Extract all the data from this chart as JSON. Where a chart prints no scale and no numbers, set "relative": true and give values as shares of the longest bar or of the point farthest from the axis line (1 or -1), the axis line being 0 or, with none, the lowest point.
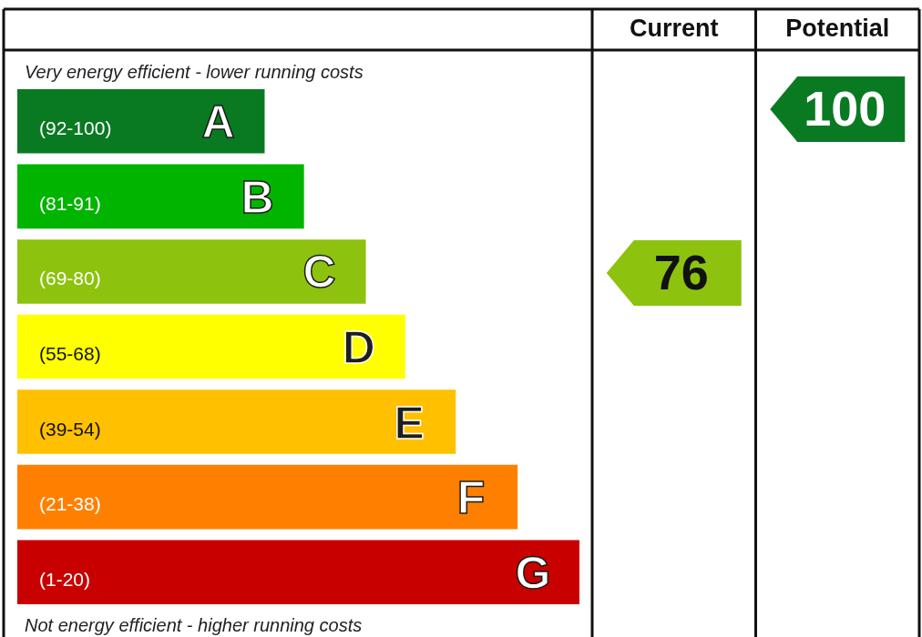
{
  "chart_data": {
    "type": "bar",
    "orientation": "horizontal",
    "relative": true,
    "categories": [
      "A",
      "B",
      "C",
      "D",
      "E",
      "F",
      "G"
    ],
    "values": [
      0.44,
      0.51,
      0.62,
      0.69,
      0.78,
      0.89,
      1
    ],
    "colors": [
      "#0a7a22",
      "#00b400",
      "#8dc30f",
      "#ffff00",
      "#ffc000",
      "#ff8000",
      "#c80000"
    ],
    "annotations": [
      "Very energy efficient - lower running costs",
      "(92-100)",
      "(81-91)",
      "(69-80)",
      "(55-68)",
      "(39-54)",
      "(21-38)",
      "(1-20)",
      "Current",
      "76",
      "Potential",
      "100",
      "Not energy efficient - higher running costs"
    ]
  }
}
